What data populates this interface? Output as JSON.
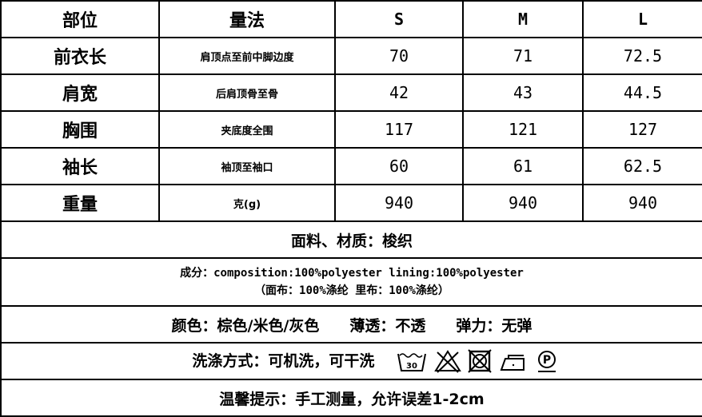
{
  "headers": [
    "部位",
    "量法",
    "S",
    "M",
    "L"
  ],
  "rows": [
    {
      "part": "前衣长",
      "method": "肩顶点至前中脚边度",
      "s": "70",
      "m": "71",
      "l": "72.5"
    },
    {
      "part": "肩宽",
      "method": "后肩顶骨至骨",
      "s": "42",
      "m": "43",
      "l": "44.5"
    },
    {
      "part": "胸围",
      "method": "夹底度全围",
      "s": "117",
      "m": "121",
      "l": "127"
    },
    {
      "part": "袖长",
      "method": "袖顶至袖口",
      "s": "60",
      "m": "61",
      "l": "62.5"
    },
    {
      "part": "重量",
      "method": "克(g)",
      "s": "940",
      "m": "940",
      "l": "940"
    }
  ],
  "fabric": "面料、材质：梭织",
  "composition": "成分：composition:100%polyester lining:100%polyester",
  "composition_cn": "（面布：100%涤纶 里布：100%涤纶）",
  "color_line": "颜色：棕色/米色/灰色　　薄透：不透　　弹力：无弹",
  "wash": "洗涤方式：可机洗，可干洗",
  "wash_icons": [
    "wash-30-icon",
    "do-not-bleach-icon",
    "do-not-tumble-dry-icon",
    "iron-low-icon",
    "dry-clean-p-icon"
  ],
  "wash_temp": "30",
  "tip": "温馨提示：手工测量，允许误差1-2cm"
}
